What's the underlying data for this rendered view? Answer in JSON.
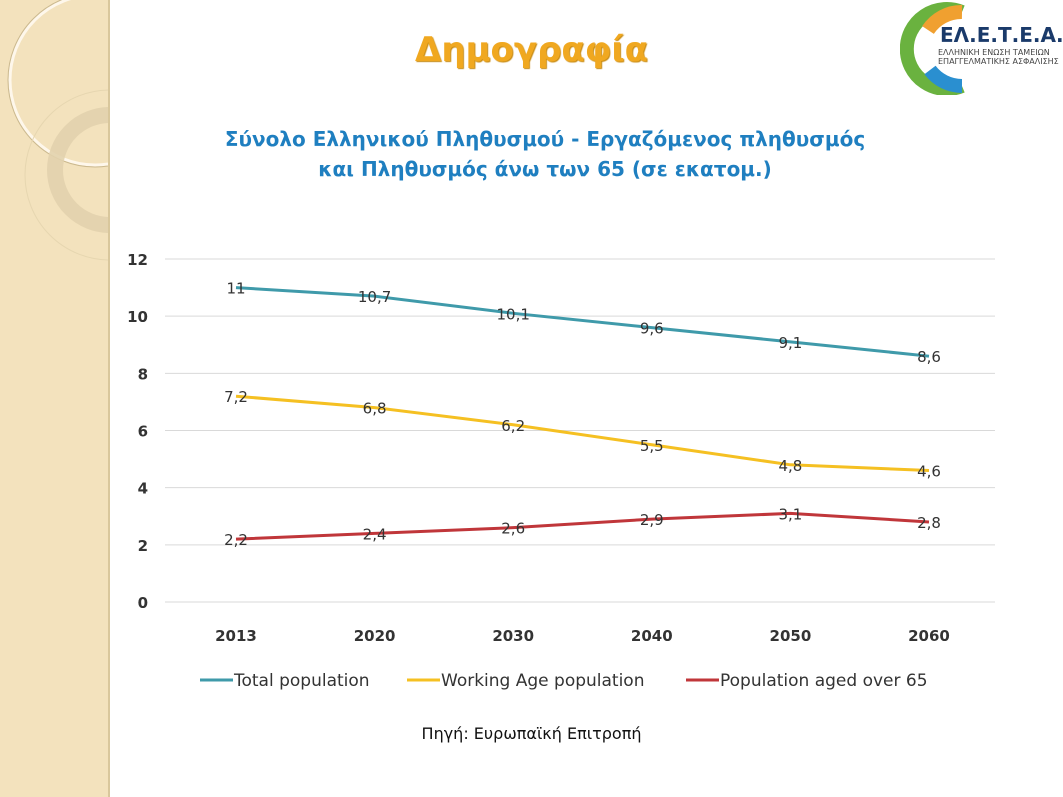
{
  "slide": {
    "title": "Δημογραφία",
    "source": "Πηγή: Ευρωπαϊκή Επιτροπή",
    "logo_text": "ΕΛ.Ε.Τ.Ε.Α.",
    "logo_subtext": "ΕΛΛΗΝΙΚΗ ΕΝΩΣΗ ΤΑΜΕΙΩΝ ΕΠΑΓΓΕΛΜΑΤΙΚΗΣ ΑΣΦΑΛΙΣΗΣ"
  },
  "chart_data": {
    "type": "line",
    "title": "Σύνολο Ελληνικού Πληθυσμού - Εργαζόμενος πληθυσμός",
    "title_line2": "και Πληθυσμός άνω των 65  (σε εκατομ.)",
    "categories": [
      "2013",
      "2020",
      "2030",
      "2040",
      "2050",
      "2060"
    ],
    "ylim": [
      0,
      12
    ],
    "yticks": [
      0,
      2,
      4,
      6,
      8,
      10,
      12
    ],
    "grid": true,
    "legend": "bottom",
    "series": [
      {
        "name": "Total population",
        "color": "#3f9aaa",
        "values": [
          11,
          10.7,
          10.1,
          9.6,
          9.1,
          8.6
        ],
        "labels": [
          "11",
          "10,7",
          "10,1",
          "9,6",
          "9,1",
          "8,6"
        ]
      },
      {
        "name": "Working Age population",
        "color": "#f5c022",
        "values": [
          7.2,
          6.8,
          6.2,
          5.5,
          4.8,
          4.6
        ],
        "labels": [
          "7,2",
          "6,8",
          "6,2",
          "5,5",
          "4,8",
          "4,6"
        ]
      },
      {
        "name": "Population aged over 65",
        "color": "#c0363a",
        "values": [
          2.2,
          2.4,
          2.6,
          2.9,
          3.1,
          2.8
        ],
        "labels": [
          "2,2",
          "2,4",
          "2,6",
          "2,9",
          "3,1",
          "2,8"
        ]
      }
    ]
  }
}
